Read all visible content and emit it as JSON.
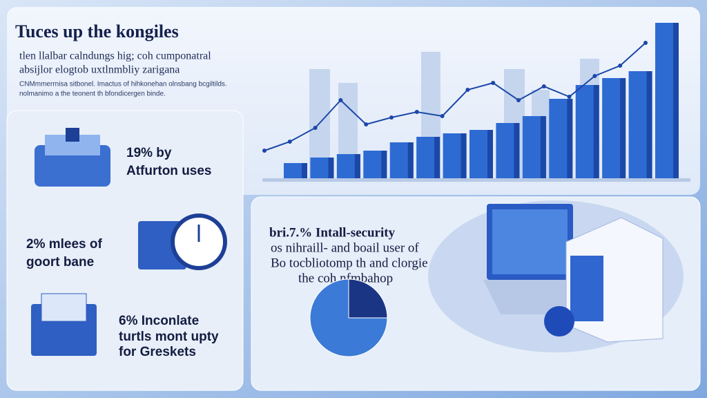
{
  "header": {
    "title": "Tuces up the kongiles",
    "subtitle": [
      "tlen llalbar calndungs hig; coh cumponatral",
      "absijlor elogtob uxtlnmbliy zarigana"
    ],
    "note": [
      "CNMmmerrnisa sitbonel. Imactus of hihkonehan olnsbang bcgiltilds.",
      "nolmanimo a the teonent th bfondicergen binde."
    ]
  },
  "stats": [
    {
      "lines": [
        "19% by",
        "Atfurton uses"
      ]
    },
    {
      "lines": [
        "2% mlees of",
        "goort bane"
      ]
    },
    {
      "lines": [
        "6% Inconlate",
        "turtls mont upty",
        "for Greskets"
      ]
    }
  ],
  "feature": {
    "lines": [
      "bri.7.% Intall-security",
      "os nihraill- and boail user of",
      "Bo tocbliotomp th and clorgie",
      "the coh nfmbahop"
    ]
  },
  "chart_data": [
    {
      "type": "bar",
      "values": [
        22,
        30,
        35,
        40,
        52,
        60,
        65,
        70,
        80,
        90,
        115,
        135,
        145,
        155,
        225
      ],
      "color": "#2d6bd3",
      "ylim": [
        0,
        240
      ]
    },
    {
      "type": "line",
      "values": [
        40,
        53,
        73,
        113,
        78,
        88,
        96,
        90,
        128,
        138,
        113,
        133,
        118,
        148,
        163,
        196
      ],
      "color": "#1c47a8",
      "ylim": [
        0,
        240
      ]
    },
    {
      "type": "pie",
      "values": [
        25,
        75
      ],
      "colors": [
        "#1b3585",
        "#3b7ad6"
      ]
    }
  ]
}
